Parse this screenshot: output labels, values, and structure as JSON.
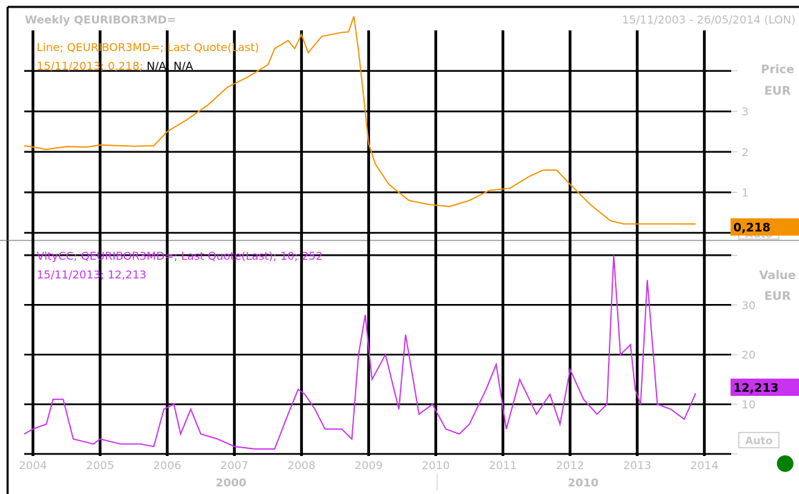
{
  "header": {
    "title": "Weekly QEURIBOR3MD=",
    "range": "15/11/2003 - 26/05/2014 (LON)"
  },
  "colors": {
    "price": "#f39200",
    "volatility": "#c832f0",
    "grid": "#000000",
    "muted": "#bdbdbd",
    "status": "#008000"
  },
  "status_icon": "green-dot-icon",
  "chart_data": [
    {
      "type": "line",
      "legend_line1": "Line; QEURIBOR3MD=; Last Quote(Last)",
      "legend_line2_colored": "15/11/2013; 0,218;",
      "legend_line2_black": " N/A; N/A",
      "ylabel": "Price",
      "yunit": "EUR",
      "yticks": [
        "3",
        "2",
        "1"
      ],
      "ytick_values": [
        3,
        2,
        1
      ],
      "ylim": [
        0,
        5
      ],
      "last_value_badge": "0,218",
      "auto_label": "Auto",
      "xlim": [
        2003.87,
        2014.4
      ],
      "grid": true,
      "series": [
        {
          "x": [
            2003.87,
            2004.0,
            2004.2,
            2004.5,
            2004.8,
            2005.0,
            2005.5,
            2005.8,
            2006.0,
            2006.3,
            2006.6,
            2006.9,
            2007.2,
            2007.5,
            2007.6,
            2007.8,
            2007.9,
            2008.0,
            2008.1,
            2008.3,
            2008.6,
            2008.7,
            2008.78,
            2008.85,
            2008.95,
            2009.0,
            2009.1,
            2009.3,
            2009.6,
            2009.9,
            2010.2,
            2010.5,
            2010.8,
            2011.1,
            2011.4,
            2011.6,
            2011.8,
            2012.0,
            2012.3,
            2012.6,
            2012.8,
            2013.1,
            2013.5,
            2013.87
          ],
          "y": [
            2.15,
            2.12,
            2.06,
            2.13,
            2.12,
            2.17,
            2.14,
            2.15,
            2.5,
            2.8,
            3.15,
            3.6,
            3.85,
            4.15,
            4.55,
            4.75,
            4.55,
            4.9,
            4.45,
            4.85,
            4.95,
            4.96,
            5.35,
            4.5,
            3.0,
            2.2,
            1.7,
            1.2,
            0.8,
            0.7,
            0.65,
            0.8,
            1.05,
            1.1,
            1.4,
            1.55,
            1.55,
            1.2,
            0.7,
            0.3,
            0.22,
            0.22,
            0.22,
            0.218
          ]
        }
      ]
    },
    {
      "type": "line",
      "legend_line1": "VltyCC; QEURIBOR3MD=; Last Quote(Last);  10; 252",
      "legend_line2_colored": "15/11/2013; 12,213",
      "ylabel": "Value",
      "yunit": "EUR",
      "yticks": [
        "30",
        "20",
        "10"
      ],
      "ytick_values": [
        30,
        20,
        10
      ],
      "ylim": [
        0,
        42
      ],
      "last_value_badge": "12,213",
      "auto_label": "Auto",
      "xlim": [
        2003.87,
        2014.4
      ],
      "grid": true,
      "series": [
        {
          "x": [
            2003.87,
            2004.0,
            2004.2,
            2004.3,
            2004.45,
            2004.6,
            2004.9,
            2005.0,
            2005.3,
            2005.6,
            2005.8,
            2005.95,
            2006.1,
            2006.2,
            2006.35,
            2006.5,
            2006.75,
            2007.0,
            2007.3,
            2007.6,
            2007.8,
            2007.95,
            2008.05,
            2008.2,
            2008.35,
            2008.6,
            2008.75,
            2008.85,
            2008.95,
            2009.05,
            2009.25,
            2009.45,
            2009.55,
            2009.75,
            2009.95,
            2010.15,
            2010.35,
            2010.5,
            2010.75,
            2010.9,
            2011.05,
            2011.25,
            2011.5,
            2011.7,
            2011.85,
            2012.0,
            2012.2,
            2012.4,
            2012.55,
            2012.65,
            2012.75,
            2012.9,
            2012.97,
            2013.05,
            2013.15,
            2013.3,
            2013.5,
            2013.7,
            2013.87
          ],
          "y": [
            4,
            5,
            6,
            11,
            11,
            3,
            2,
            3,
            2,
            2,
            1.5,
            9,
            10,
            4,
            9,
            4,
            3,
            1.5,
            1,
            1,
            8,
            13,
            12,
            9,
            5,
            5,
            3,
            20,
            28,
            15,
            20,
            9,
            24,
            8,
            10,
            5,
            4,
            6,
            13,
            18,
            5,
            15,
            8,
            12,
            6,
            17,
            11,
            8,
            10,
            40,
            20,
            22,
            13,
            10,
            35,
            10,
            9,
            7,
            12.213
          ]
        }
      ]
    }
  ],
  "x_axis": {
    "ticks": [
      "2004",
      "2005",
      "2006",
      "2007",
      "2008",
      "2009",
      "2010",
      "2011",
      "2012",
      "2013",
      "2014"
    ],
    "tick_values": [
      2004,
      2005,
      2006,
      2007,
      2008,
      2009,
      2010,
      2011,
      2012,
      2013,
      2014
    ],
    "decades": [
      "2000",
      "2010"
    ]
  }
}
